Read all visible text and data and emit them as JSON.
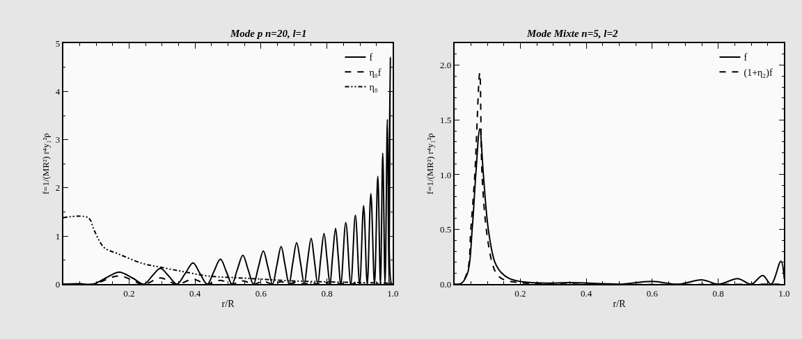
{
  "chart_data": [
    {
      "type": "line",
      "title": "Mode p n=20, l=1",
      "xlabel": "r/R",
      "ylabel": "f=1/(MR²) r⁴y₁²ρ",
      "xlim": [
        0,
        1.0
      ],
      "ylim": [
        0,
        5
      ],
      "xticks": [
        {
          "value": 0.2,
          "label": "0.2"
        },
        {
          "value": 0.4,
          "label": "0.4"
        },
        {
          "value": 0.6,
          "label": "0.6"
        },
        {
          "value": 0.8,
          "label": "0.8"
        },
        {
          "value": 1.0,
          "label": "1.0"
        }
      ],
      "yticks": [
        0,
        1,
        2,
        3,
        4,
        5
      ],
      "legend": "top right",
      "marker": "none",
      "series": [
        {
          "name": "f",
          "color": "#000000",
          "line_style": "solid",
          "x": [
            0,
            0.05,
            0.09,
            0.13,
            0.17,
            0.21,
            0.245,
            0.27,
            0.295,
            0.32,
            0.345,
            0.37,
            0.394,
            0.415,
            0.437,
            0.457,
            0.477,
            0.495,
            0.512,
            0.528,
            0.545,
            0.561,
            0.577,
            0.592,
            0.607,
            0.621,
            0.635,
            0.648,
            0.661,
            0.673,
            0.685,
            0.696,
            0.708,
            0.72,
            0.731,
            0.741,
            0.752,
            0.762,
            0.772,
            0.781,
            0.791,
            0.8,
            0.809,
            0.817,
            0.826,
            0.834,
            0.842,
            0.857,
            0.872,
            0.886,
            0.899,
            0.911,
            0.922,
            0.933,
            0.944,
            0.954,
            0.962,
            0.969,
            0.976,
            0.983,
            0.988,
            0.992,
            0.996,
            1.0
          ],
          "values": [
            0,
            0.01,
            0,
            0.13,
            0.25,
            0.13,
            0,
            0.17,
            0.33,
            0.17,
            0,
            0.22,
            0.44,
            0.22,
            0,
            0.26,
            0.52,
            0.26,
            0,
            0.3,
            0.6,
            0.3,
            0,
            0.35,
            0.69,
            0.35,
            0,
            0.39,
            0.78,
            0.39,
            0,
            0.43,
            0.86,
            0.43,
            0,
            0.48,
            0.95,
            0.48,
            0,
            0.53,
            1.05,
            0.53,
            0,
            0.58,
            1.16,
            0.58,
            0,
            1.28,
            0,
            1.43,
            0,
            1.63,
            0,
            1.88,
            0,
            2.24,
            0,
            2.72,
            0,
            3.42,
            0,
            4.71,
            0,
            0
          ]
        },
        {
          "name": "η₀f",
          "color": "#000000",
          "line_style": "dashed",
          "x": [
            0,
            0.09,
            0.17,
            0.245,
            0.295,
            0.345,
            0.394,
            0.437,
            0.477,
            0.512,
            0.545,
            0.577,
            0.607,
            0.635,
            0.661,
            0.685,
            0.708,
            0.731,
            0.752,
            0.772,
            0.791,
            0.809,
            0.826,
            0.842,
            0.857,
            0.872,
            0.886,
            0.9,
            1.0
          ],
          "values": [
            0,
            0,
            0.17,
            0,
            0.13,
            0,
            0.1,
            0,
            0.08,
            0,
            0.07,
            0,
            0.06,
            0,
            0.05,
            0,
            0.05,
            0,
            0.04,
            0,
            0.04,
            0,
            0.03,
            0,
            0.03,
            0,
            0.02,
            0,
            0
          ]
        },
        {
          "name": "η₀",
          "color": "#000000",
          "line_style": "dashdot",
          "x": [
            0,
            0.076,
            0.093,
            0.109,
            0.126,
            0.167,
            0.241,
            0.29,
            0.357,
            0.44,
            0.564,
            0.688,
            0.853,
            1.0
          ],
          "values": [
            1.38,
            1.38,
            1.14,
            0.91,
            0.75,
            0.63,
            0.43,
            0.36,
            0.27,
            0.17,
            0.12,
            0.07,
            0.04,
            0.02
          ]
        }
      ]
    },
    {
      "type": "line",
      "title": "Mode Mixte n=5, l=2",
      "xlabel": "r/R",
      "ylabel": "f=1/(MR²) r⁴y₁²ρ",
      "xlim": [
        0,
        1.0
      ],
      "ylim": [
        0,
        2.2
      ],
      "xticks": [
        {
          "value": 0.2,
          "label": "0.2"
        },
        {
          "value": 0.4,
          "label": "0.4"
        },
        {
          "value": 0.6,
          "label": "0.6"
        },
        {
          "value": 0.8,
          "label": "0.8"
        },
        {
          "value": 1.0,
          "label": "1.0"
        }
      ],
      "yticks": [
        {
          "value": 0,
          "label": "0.0"
        },
        {
          "value": 0.5,
          "label": "0.5"
        },
        {
          "value": 1.0,
          "label": "1.0"
        },
        {
          "value": 1.5,
          "label": "1.5"
        },
        {
          "value": 2.0,
          "label": "2.0"
        }
      ],
      "legend": "top right",
      "marker": "none",
      "series": [
        {
          "name": "f",
          "color": "#000000",
          "line_style": "solid",
          "x": [
            0,
            0.02,
            0.04,
            0.054,
            0.065,
            0.077,
            0.088,
            0.103,
            0.123,
            0.144,
            0.168,
            0.21,
            0.3,
            0.35,
            0.45,
            0.5,
            0.6,
            0.68,
            0.75,
            0.8,
            0.86,
            0.9,
            0.935,
            0.96,
            0.99,
            1.0
          ],
          "values": [
            0,
            0.005,
            0.1,
            0.5,
            1.0,
            1.42,
            1.0,
            0.5,
            0.2,
            0.1,
            0.05,
            0.02,
            0.01,
            0.015,
            0.005,
            0,
            0.025,
            0,
            0.04,
            0,
            0.05,
            0,
            0.08,
            0,
            0.21,
            0.05
          ]
        },
        {
          "name": "(1+η₂)f",
          "color": "#000000",
          "line_style": "dashed",
          "x": [
            0,
            0.02,
            0.04,
            0.05,
            0.062,
            0.077,
            0.084,
            0.097,
            0.114,
            0.127,
            0.144,
            0.18,
            0.25,
            1.0
          ],
          "values": [
            0,
            0.005,
            0.12,
            0.5,
            1.0,
            1.93,
            1.0,
            0.5,
            0.2,
            0.1,
            0.05,
            0.02,
            0.005,
            0
          ]
        }
      ]
    }
  ]
}
